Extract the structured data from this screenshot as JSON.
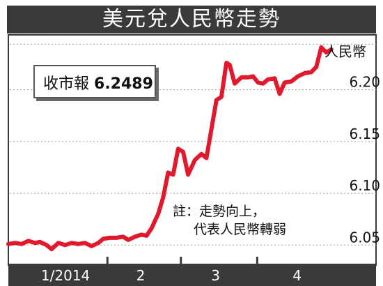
{
  "title": "美元兌人民幣走勢",
  "close_box": {
    "label": "收市報",
    "value": "6.2489"
  },
  "note": {
    "line1": "註：走勢向上，",
    "line2": "代表人民幣轉弱"
  },
  "colors": {
    "line": "#e0192d",
    "title_bg": "#3a3a3a",
    "axis_band": "#3a3a3a",
    "grid": "#9a9a9a"
  },
  "chart_data": {
    "type": "line",
    "title": "美元兌人民幣走勢",
    "ylabel": "人民幣",
    "xlabel": "",
    "ylim": [
      6.032,
      6.253
    ],
    "y_ticks": [
      6.05,
      6.1,
      6.15,
      6.2
    ],
    "y_tick_labels": [
      "6.05",
      "6.10",
      "6.15",
      "6.20"
    ],
    "x_ticks": [
      {
        "label": "1/2014",
        "start": 0,
        "end": 0.285
      },
      {
        "label": "2",
        "start": 0.285,
        "end": 0.51
      },
      {
        "label": "3",
        "start": 0.51,
        "end": 0.735
      },
      {
        "label": "4",
        "start": 0.735,
        "end": 1.0
      }
    ],
    "grid": true,
    "series": [
      {
        "values": [
          [
            0.0,
            6.051
          ],
          [
            0.02,
            6.052
          ],
          [
            0.04,
            6.051
          ],
          [
            0.06,
            6.054
          ],
          [
            0.08,
            6.052
          ],
          [
            0.095,
            6.053
          ],
          [
            0.115,
            6.05
          ],
          [
            0.13,
            6.046
          ],
          [
            0.15,
            6.052
          ],
          [
            0.17,
            6.05
          ],
          [
            0.19,
            6.052
          ],
          [
            0.21,
            6.051
          ],
          [
            0.23,
            6.052
          ],
          [
            0.25,
            6.049
          ],
          [
            0.27,
            6.052
          ],
          [
            0.285,
            6.056
          ],
          [
            0.305,
            6.057
          ],
          [
            0.325,
            6.057
          ],
          [
            0.345,
            6.058
          ],
          [
            0.36,
            6.055
          ],
          [
            0.38,
            6.058
          ],
          [
            0.4,
            6.06
          ],
          [
            0.415,
            6.059
          ],
          [
            0.43,
            6.066
          ],
          [
            0.45,
            6.08
          ],
          [
            0.465,
            6.096
          ],
          [
            0.48,
            6.12
          ],
          [
            0.495,
            6.118
          ],
          [
            0.51,
            6.143
          ],
          [
            0.525,
            6.14
          ],
          [
            0.54,
            6.118
          ],
          [
            0.56,
            6.132
          ],
          [
            0.58,
            6.138
          ],
          [
            0.595,
            6.134
          ],
          [
            0.61,
            6.162
          ],
          [
            0.625,
            6.19
          ],
          [
            0.64,
            6.193
          ],
          [
            0.655,
            6.226
          ],
          [
            0.665,
            6.224
          ],
          [
            0.68,
            6.206
          ],
          [
            0.7,
            6.212
          ],
          [
            0.72,
            6.212
          ],
          [
            0.735,
            6.213
          ],
          [
            0.75,
            6.207
          ],
          [
            0.765,
            6.206
          ],
          [
            0.78,
            6.21
          ],
          [
            0.8,
            6.211
          ],
          [
            0.815,
            6.196
          ],
          [
            0.83,
            6.207
          ],
          [
            0.85,
            6.208
          ],
          [
            0.87,
            6.213
          ],
          [
            0.89,
            6.216
          ],
          [
            0.91,
            6.217
          ],
          [
            0.925,
            6.222
          ],
          [
            0.94,
            6.241
          ],
          [
            0.955,
            6.236
          ],
          [
            0.97,
            6.239
          ]
        ]
      }
    ]
  }
}
